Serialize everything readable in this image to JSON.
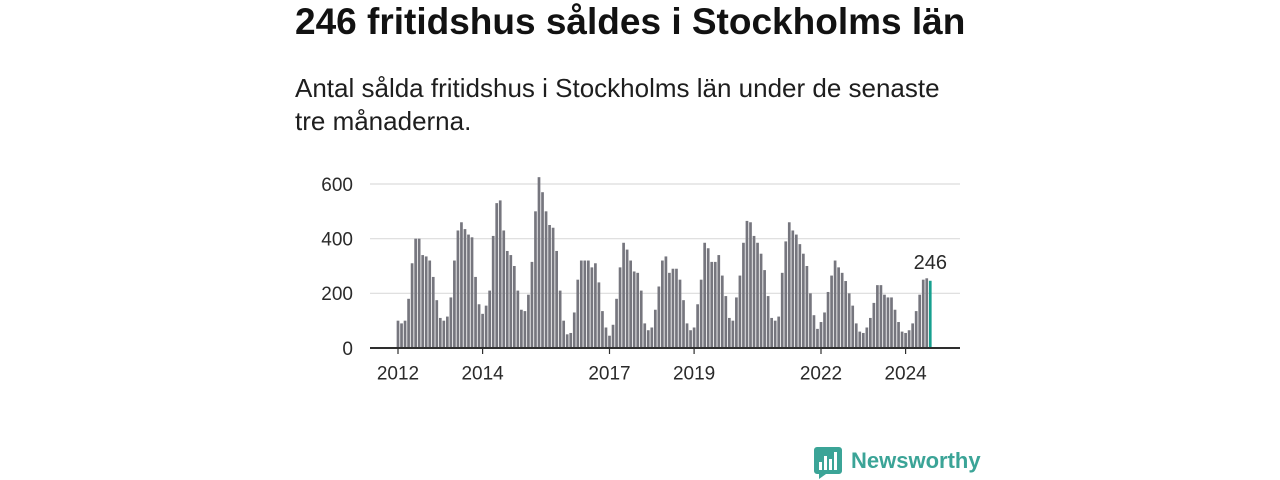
{
  "chart_data": {
    "type": "bar",
    "title": "246 fritidshus såldes i Stockholms län",
    "subtitle": "Antal sålda fritidshus i Stockholms län under de senaste tre månaderna.",
    "xlabel": "",
    "ylabel": "",
    "ylim": [
      0,
      600
    ],
    "yticks": [
      0,
      200,
      400,
      600
    ],
    "grid": "horizontal",
    "interval": "month",
    "start_year": 2012,
    "start_month": 1,
    "x_ticks": [
      {
        "year": 2012,
        "label": "2012"
      },
      {
        "year": 2014,
        "label": "2014"
      },
      {
        "year": 2017,
        "label": "2017"
      },
      {
        "year": 2019,
        "label": "2019"
      },
      {
        "year": 2022,
        "label": "2022"
      },
      {
        "year": 2024,
        "label": "2024"
      }
    ],
    "values_by_year": [
      {
        "year": 2012,
        "values": [
          100,
          90,
          100,
          180,
          310,
          400,
          400,
          340,
          335,
          320,
          260,
          175
        ]
      },
      {
        "year": 2013,
        "values": [
          110,
          100,
          115,
          185,
          320,
          430,
          460,
          435,
          415,
          405,
          260,
          160
        ]
      },
      {
        "year": 2014,
        "values": [
          125,
          155,
          210,
          410,
          530,
          540,
          430,
          355,
          340,
          300,
          210,
          140
        ]
      },
      {
        "year": 2015,
        "values": [
          135,
          195,
          315,
          500,
          625,
          570,
          500,
          450,
          440,
          355,
          210,
          100
        ]
      },
      {
        "year": 2016,
        "values": [
          50,
          55,
          130,
          250,
          320,
          320,
          320,
          295,
          310,
          240,
          135,
          75
        ]
      },
      {
        "year": 2017,
        "values": [
          45,
          85,
          180,
          295,
          385,
          360,
          320,
          280,
          275,
          210,
          90,
          65
        ]
      },
      {
        "year": 2018,
        "values": [
          75,
          140,
          225,
          320,
          335,
          275,
          290,
          290,
          250,
          175,
          90,
          65
        ]
      },
      {
        "year": 2019,
        "values": [
          75,
          160,
          250,
          385,
          365,
          315,
          315,
          340,
          265,
          190,
          110,
          100
        ]
      },
      {
        "year": 2020,
        "values": [
          185,
          265,
          385,
          465,
          460,
          410,
          385,
          345,
          285,
          190,
          110,
          100
        ]
      },
      {
        "year": 2021,
        "values": [
          115,
          275,
          390,
          460,
          430,
          415,
          380,
          345,
          300,
          200,
          120,
          70
        ]
      },
      {
        "year": 2022,
        "values": [
          95,
          130,
          205,
          265,
          320,
          295,
          275,
          245,
          200,
          155,
          90,
          60
        ]
      },
      {
        "year": 2023,
        "values": [
          55,
          75,
          110,
          165,
          230,
          230,
          195,
          185,
          185,
          140,
          95,
          60
        ]
      },
      {
        "year": 2024,
        "values": [
          55,
          65,
          90,
          135,
          195,
          250,
          255,
          246
        ]
      }
    ],
    "last_value_label": "246",
    "colors": {
      "bar": "#76767e",
      "highlight": "#17a08f",
      "grid": "#dcdcdc",
      "axis": "#2e2e2e"
    }
  },
  "branding": {
    "name": "Newsworthy",
    "color": "#3ba497"
  }
}
